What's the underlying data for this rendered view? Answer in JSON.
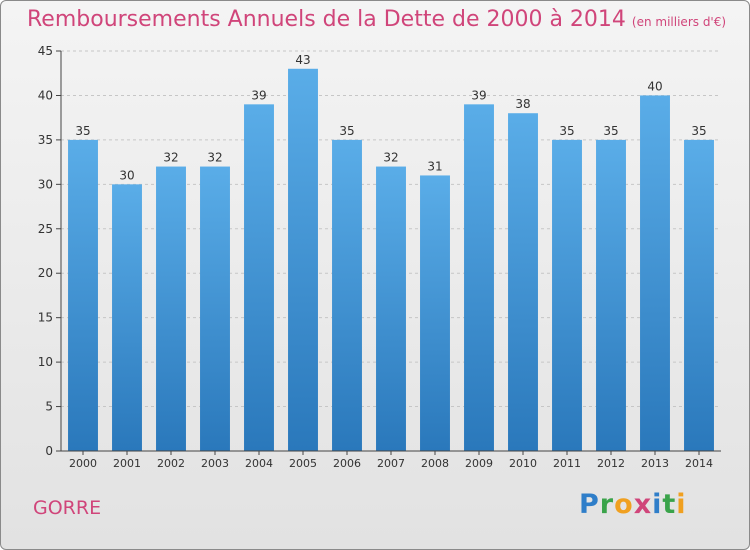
{
  "header": {
    "title": "Remboursements Annuels de la Dette de 2000 à 2014",
    "unit": "(en milliers d'€)"
  },
  "footer": {
    "place": "GORRE",
    "logo": {
      "text": "Proxiti",
      "letters": [
        {
          "ch": "P",
          "color": "#2f7ec9"
        },
        {
          "ch": "r",
          "color": "#3aa34a"
        },
        {
          "ch": "o",
          "color": "#f0a020"
        },
        {
          "ch": "x",
          "color": "#d0457a"
        },
        {
          "ch": "i",
          "color": "#2f7ec9"
        },
        {
          "ch": "t",
          "color": "#3aa34a"
        },
        {
          "ch": "i",
          "color": "#f0a020"
        }
      ]
    }
  },
  "colors": {
    "accent": "#d0457a",
    "bar_top": "#5aade8",
    "bar_bottom": "#2a78bb",
    "grid": "#c6c6c6",
    "axis": "#444444",
    "text": "#333333"
  },
  "chart_data": {
    "type": "bar",
    "title": "Remboursements Annuels de la Dette de 2000 à 2014",
    "subtitle": "(en milliers d'€)",
    "xlabel": "",
    "ylabel": "",
    "categories": [
      "2000",
      "2001",
      "2002",
      "2003",
      "2004",
      "2005",
      "2006",
      "2007",
      "2008",
      "2009",
      "2010",
      "2011",
      "2012",
      "2013",
      "2014"
    ],
    "values": [
      35,
      30,
      32,
      32,
      39,
      43,
      35,
      32,
      31,
      39,
      38,
      35,
      35,
      40,
      35
    ],
    "ylim": [
      0,
      45
    ],
    "yticks": [
      0,
      5,
      10,
      15,
      20,
      25,
      30,
      35,
      40,
      45
    ],
    "grid": true,
    "data_labels": true
  }
}
